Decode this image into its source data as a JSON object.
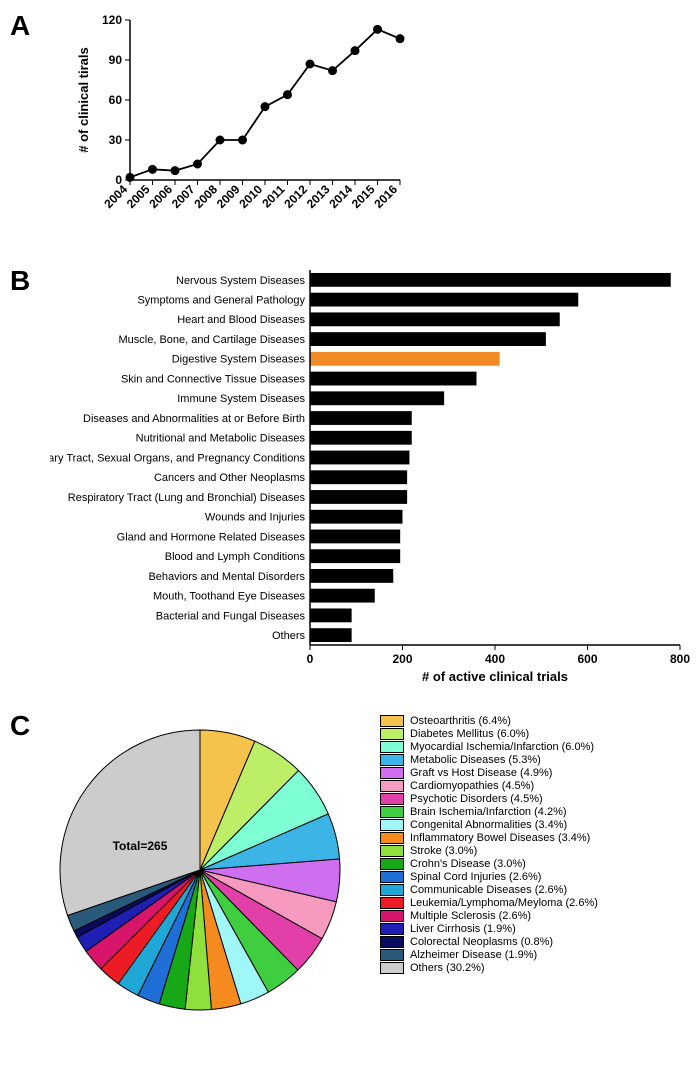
{
  "panel_labels": {
    "a": "A",
    "b": "B",
    "c": "C"
  },
  "line_chart": {
    "type": "line",
    "ylabel": "# of clinical tirals",
    "label_fontsize": 13,
    "ylim": [
      0,
      120
    ],
    "ytick_step": 30,
    "yticks": [
      0,
      30,
      60,
      90,
      120
    ],
    "x_categories": [
      "2004",
      "2005",
      "2006",
      "2007",
      "2008",
      "2009",
      "2010",
      "2011",
      "2012",
      "2013",
      "2014",
      "2015",
      "2016"
    ],
    "values": [
      2,
      8,
      7,
      12,
      30,
      30,
      55,
      64,
      87,
      82,
      97,
      113,
      106
    ],
    "line_color": "#000000",
    "marker_color": "#000000",
    "marker_size": 4,
    "line_width": 1.8,
    "background_color": "#ffffff",
    "xlabel_rotation_deg": 45
  },
  "bar_chart": {
    "type": "bar-horizontal",
    "xlabel": "# of active clinical trials",
    "label_fontsize": 13,
    "xlim": [
      0,
      800
    ],
    "xtick_step": 200,
    "xticks": [
      0,
      200,
      400,
      600,
      800
    ],
    "bar_color_default": "#000000",
    "bar_color_highlight": "#f08a24",
    "highlight_index": 4,
    "background_color": "#ffffff",
    "categories": [
      "Nervous System Diseases",
      "Symptoms and General Pathology",
      "Heart and Blood Diseases",
      "Muscle, Bone, and Cartilage Diseases",
      "Digestive System Diseases",
      "Skin and Connective Tissue Diseases",
      "Immune System Diseases",
      "Diseases and Abnormalities at or Before Birth",
      "Nutritional and Metabolic Diseases",
      "Urinary Tract, Sexual Organs, and Pregnancy Conditions",
      "Cancers and Other Neoplasms",
      "Respiratory Tract (Lung and Bronchial) Diseases",
      "Wounds and Injuries",
      "Gland and Hormone Related Diseases",
      "Blood and Lymph Conditions",
      "Behaviors and Mental Disorders",
      "Mouth, Toothand Eye Diseases",
      "Bacterial and Fungal Diseases",
      "Others"
    ],
    "values": [
      780,
      580,
      540,
      510,
      410,
      360,
      290,
      220,
      220,
      215,
      210,
      210,
      200,
      195,
      195,
      180,
      140,
      90,
      90
    ]
  },
  "pie_chart": {
    "type": "pie",
    "total_label": "Total=265",
    "total_fontsize": 12,
    "start_angle_deg": 90,
    "direction": "cw",
    "stroke_color": "#000000",
    "stroke_width": 1,
    "background_color": "#ffffff",
    "slices": [
      {
        "label": "Osteoarthritis (6.4%)",
        "value": 6.4,
        "color": "#f5c24c"
      },
      {
        "label": "Diabetes Mellitus (6.0%)",
        "value": 6.0,
        "color": "#bcee68"
      },
      {
        "label": "Myocardial Ischemia/Infarction (6.0%)",
        "value": 6.0,
        "color": "#7fffd4"
      },
      {
        "label": "Metabolic Diseases (5.3%)",
        "value": 5.3,
        "color": "#3cb4e6"
      },
      {
        "label": "Graft vs Host Disease (4.9%)",
        "value": 4.9,
        "color": "#d06ef0"
      },
      {
        "label": "Cardiomyopathies (4.5%)",
        "value": 4.5,
        "color": "#f79ac0"
      },
      {
        "label": "Psychotic Disorders (4.5%)",
        "value": 4.5,
        "color": "#e23fa8"
      },
      {
        "label": "Brain Ischemia/Infarction (4.2%)",
        "value": 4.2,
        "color": "#3fce3f"
      },
      {
        "label": "Congenital Abnormalities (3.4%)",
        "value": 3.4,
        "color": "#a0f7f7"
      },
      {
        "label": " Inflammatory Bowel Diseases (3.4%)",
        "value": 3.4,
        "color": "#f58a1f"
      },
      {
        "label": "Stroke (3.0%)",
        "value": 3.0,
        "color": "#8fe03c"
      },
      {
        "label": "Crohn's Disease (3.0%)",
        "value": 3.0,
        "color": "#17a817"
      },
      {
        "label": "Spinal Cord Injuries (2.6%)",
        "value": 2.6,
        "color": "#1f6fd6"
      },
      {
        "label": "Communicable Diseases  (2.6%)",
        "value": 2.6,
        "color": "#1fa8d6"
      },
      {
        "label": "Leukemia/Lymphoma/Meyloma (2.6%)",
        "value": 2.6,
        "color": "#ed1c24"
      },
      {
        "label": "Multiple Sclerosis (2.6%)",
        "value": 2.6,
        "color": "#d6156b"
      },
      {
        "label": "Liver Cirrhosis (1.9%)",
        "value": 1.9,
        "color": "#1f1fb5"
      },
      {
        "label": "Colorectal Neoplasms (0.8%)",
        "value": 0.8,
        "color": "#0a0a5e"
      },
      {
        "label": "Alzheimer Disease (1.9%)",
        "value": 1.9,
        "color": "#2a5a7a"
      },
      {
        "label": "Others (30.2%)",
        "value": 30.2,
        "color": "#cccccc"
      }
    ]
  }
}
